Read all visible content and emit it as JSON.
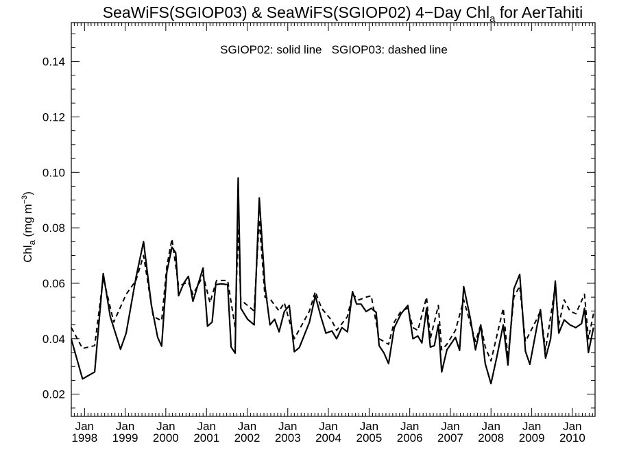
{
  "chart_data": {
    "type": "line",
    "title": "SeaWiFS(SGIOP03) & SeaWiFS(SGIOP02) 4−Day Chl",
    "title_subscript": "a",
    "title_suffix": " for AerTahiti",
    "annotation": "SGIOP02: solid line   SGIOP03: dashed line",
    "ylabel": "Chl",
    "ylabel_subscript": "a",
    "ylabel_units_prefix": " (mg m",
    "ylabel_units_superscript": "−3",
    "ylabel_units_suffix": ")",
    "xlabel": "",
    "xlim": [
      "1997-09-04",
      "2010-07-24"
    ],
    "ylim": [
      0.012,
      0.154
    ],
    "y_ticks": [
      0.02,
      0.04,
      0.06,
      0.08,
      0.1,
      0.12,
      0.14
    ],
    "y_tick_labels": [
      "0.02",
      "0.04",
      "0.06",
      "0.08",
      "0.10",
      "0.12",
      "0.14"
    ],
    "x_ticks": [
      {
        "month": "Jan",
        "year": "1998",
        "date": "1998-01-01"
      },
      {
        "month": "Jan",
        "year": "1999",
        "date": "1999-01-01"
      },
      {
        "month": "Jan",
        "year": "2000",
        "date": "2000-01-01"
      },
      {
        "month": "Jan",
        "year": "2001",
        "date": "2001-01-01"
      },
      {
        "month": "Jan",
        "year": "2002",
        "date": "2002-01-01"
      },
      {
        "month": "Jan",
        "year": "2003",
        "date": "2003-01-01"
      },
      {
        "month": "Jan",
        "year": "2004",
        "date": "2004-01-01"
      },
      {
        "month": "Jan",
        "year": "2005",
        "date": "2005-01-01"
      },
      {
        "month": "Jan",
        "year": "2006",
        "date": "2006-01-01"
      },
      {
        "month": "Jan",
        "year": "2007",
        "date": "2007-01-01"
      },
      {
        "month": "Jan",
        "year": "2008",
        "date": "2008-01-01"
      },
      {
        "month": "Jan",
        "year": "2009",
        "date": "2009-01-01"
      },
      {
        "month": "Jan",
        "year": "2010",
        "date": "2010-01-01"
      }
    ],
    "grid": false,
    "series": [
      {
        "line_style": "solid",
        "color": "#000000",
        "points": [
          [
            "1997-09-04",
            0.0398
          ],
          [
            "1997-12-14",
            0.0255
          ],
          [
            "1998-04-02",
            0.028
          ],
          [
            "1998-06-18",
            0.0635
          ],
          [
            "1998-08-20",
            0.048
          ],
          [
            "1998-11-20",
            0.0362
          ],
          [
            "1999-01-10",
            0.042
          ],
          [
            "1999-04-08",
            0.062
          ],
          [
            "1999-06-15",
            0.075
          ],
          [
            "1999-08-25",
            0.052
          ],
          [
            "1999-10-20",
            0.0405
          ],
          [
            "1999-11-25",
            0.0373
          ],
          [
            "2000-01-10",
            0.064
          ],
          [
            "2000-02-25",
            0.073
          ],
          [
            "2000-03-30",
            0.071
          ],
          [
            "2000-04-25",
            0.0555
          ],
          [
            "2000-06-10",
            0.06
          ],
          [
            "2000-07-22",
            0.0625
          ],
          [
            "2000-09-01",
            0.0535
          ],
          [
            "2000-10-20",
            0.06
          ],
          [
            "2000-12-01",
            0.0655
          ],
          [
            "2001-01-10",
            0.0445
          ],
          [
            "2001-02-20",
            0.046
          ],
          [
            "2001-03-25",
            0.0595
          ],
          [
            "2001-05-15",
            0.0598
          ],
          [
            "2001-07-10",
            0.0595
          ],
          [
            "2001-08-10",
            0.037
          ],
          [
            "2001-09-15",
            0.0348
          ],
          [
            "2001-10-12",
            0.098
          ],
          [
            "2001-11-05",
            0.051
          ],
          [
            "2002-01-05",
            0.047
          ],
          [
            "2002-03-05",
            0.045
          ],
          [
            "2002-04-20",
            0.0908
          ],
          [
            "2002-06-10",
            0.059
          ],
          [
            "2002-07-25",
            0.045
          ],
          [
            "2002-09-05",
            0.047
          ],
          [
            "2002-10-15",
            0.0425
          ],
          [
            "2002-12-01",
            0.0498
          ],
          [
            "2003-01-15",
            0.052
          ],
          [
            "2003-03-01",
            0.0353
          ],
          [
            "2003-04-15",
            0.0368
          ],
          [
            "2003-07-15",
            0.046
          ],
          [
            "2003-09-05",
            0.0555
          ],
          [
            "2003-10-25",
            0.048
          ],
          [
            "2003-12-10",
            0.042
          ],
          [
            "2004-02-01",
            0.0428
          ],
          [
            "2004-03-15",
            0.04
          ],
          [
            "2004-05-01",
            0.044
          ],
          [
            "2004-06-20",
            0.0425
          ],
          [
            "2004-08-05",
            0.057
          ],
          [
            "2004-09-10",
            0.0525
          ],
          [
            "2004-10-20",
            0.0525
          ],
          [
            "2004-12-05",
            0.0498
          ],
          [
            "2005-01-20",
            0.051
          ],
          [
            "2005-03-05",
            0.0495
          ],
          [
            "2005-04-01",
            0.0375
          ],
          [
            "2005-05-15",
            0.0348
          ],
          [
            "2005-06-25",
            0.031
          ],
          [
            "2005-08-15",
            0.044
          ],
          [
            "2005-10-15",
            0.049
          ],
          [
            "2005-12-15",
            0.052
          ],
          [
            "2006-01-30",
            0.04
          ],
          [
            "2006-03-15",
            0.041
          ],
          [
            "2006-04-20",
            0.0385
          ],
          [
            "2006-06-01",
            0.051
          ],
          [
            "2006-07-05",
            0.037
          ],
          [
            "2006-08-10",
            0.0375
          ],
          [
            "2006-09-15",
            0.045
          ],
          [
            "2006-10-15",
            0.028
          ],
          [
            "2006-12-01",
            0.036
          ],
          [
            "2007-02-15",
            0.0405
          ],
          [
            "2007-03-25",
            0.0358
          ],
          [
            "2007-05-01",
            0.0588
          ],
          [
            "2007-07-01",
            0.047
          ],
          [
            "2007-08-15",
            0.036
          ],
          [
            "2007-10-01",
            0.045
          ],
          [
            "2007-11-10",
            0.031
          ],
          [
            "2008-01-01",
            0.0238
          ],
          [
            "2008-02-20",
            0.033
          ],
          [
            "2008-04-20",
            0.045
          ],
          [
            "2008-06-01",
            0.0305
          ],
          [
            "2008-07-25",
            0.058
          ],
          [
            "2008-09-15",
            0.0632
          ],
          [
            "2008-11-05",
            0.0355
          ],
          [
            "2008-12-15",
            0.0308
          ],
          [
            "2009-02-15",
            0.044
          ],
          [
            "2009-03-20",
            0.0505
          ],
          [
            "2009-05-05",
            0.033
          ],
          [
            "2009-06-20",
            0.04
          ],
          [
            "2009-08-01",
            0.0608
          ],
          [
            "2009-09-01",
            0.042
          ],
          [
            "2009-10-20",
            0.0468
          ],
          [
            "2009-12-10",
            0.045
          ],
          [
            "2010-02-01",
            0.044
          ],
          [
            "2010-03-25",
            0.0455
          ],
          [
            "2010-04-20",
            0.051
          ],
          [
            "2010-05-25",
            0.035
          ],
          [
            "2010-07-10",
            0.044
          ]
        ]
      },
      {
        "line_style": "dashed",
        "color": "#000000",
        "points": [
          [
            "1997-09-04",
            0.044
          ],
          [
            "1997-12-14",
            0.0365
          ],
          [
            "1998-04-02",
            0.0375
          ],
          [
            "1998-06-18",
            0.062
          ],
          [
            "1998-09-20",
            0.046
          ],
          [
            "1999-01-10",
            0.056
          ],
          [
            "1999-04-08",
            0.061
          ],
          [
            "1999-06-15",
            0.07
          ],
          [
            "1999-09-10",
            0.048
          ],
          [
            "1999-11-25",
            0.0465
          ],
          [
            "2000-01-10",
            0.066
          ],
          [
            "2000-02-25",
            0.076
          ],
          [
            "2000-04-25",
            0.059
          ],
          [
            "2000-07-22",
            0.0605
          ],
          [
            "2000-09-01",
            0.056
          ],
          [
            "2000-10-20",
            0.0595
          ],
          [
            "2000-12-01",
            0.063
          ],
          [
            "2001-02-01",
            0.053
          ],
          [
            "2001-04-01",
            0.061
          ],
          [
            "2001-07-10",
            0.061
          ],
          [
            "2001-09-15",
            0.044
          ],
          [
            "2001-10-12",
            0.08
          ],
          [
            "2001-11-05",
            0.054
          ],
          [
            "2002-03-05",
            0.05
          ],
          [
            "2002-04-20",
            0.083
          ],
          [
            "2002-06-10",
            0.055
          ],
          [
            "2002-08-01",
            0.054
          ],
          [
            "2002-10-15",
            0.05
          ],
          [
            "2002-12-01",
            0.053
          ],
          [
            "2003-03-01",
            0.04
          ],
          [
            "2003-07-15",
            0.05
          ],
          [
            "2003-09-05",
            0.057
          ],
          [
            "2003-11-01",
            0.051
          ],
          [
            "2004-02-01",
            0.0465
          ],
          [
            "2004-03-15",
            0.043
          ],
          [
            "2004-06-20",
            0.048
          ],
          [
            "2004-08-05",
            0.056
          ],
          [
            "2004-10-01",
            0.054
          ],
          [
            "2004-12-05",
            0.055
          ],
          [
            "2005-01-20",
            0.0555
          ],
          [
            "2005-04-01",
            0.04
          ],
          [
            "2005-06-25",
            0.038
          ],
          [
            "2005-08-15",
            0.046
          ],
          [
            "2005-10-15",
            0.05
          ],
          [
            "2005-12-15",
            0.051
          ],
          [
            "2006-01-30",
            0.044
          ],
          [
            "2006-03-15",
            0.043
          ],
          [
            "2006-06-01",
            0.055
          ],
          [
            "2006-07-05",
            0.04
          ],
          [
            "2006-09-15",
            0.052
          ],
          [
            "2006-10-15",
            0.036
          ],
          [
            "2006-12-01",
            0.038
          ],
          [
            "2007-02-15",
            0.043
          ],
          [
            "2007-05-01",
            0.054
          ],
          [
            "2007-08-15",
            0.039
          ],
          [
            "2007-10-01",
            0.045
          ],
          [
            "2007-11-10",
            0.037
          ],
          [
            "2008-01-01",
            0.032
          ],
          [
            "2008-04-20",
            0.051
          ],
          [
            "2008-06-01",
            0.033
          ],
          [
            "2008-07-25",
            0.055
          ],
          [
            "2008-09-15",
            0.059
          ],
          [
            "2008-11-05",
            0.039
          ],
          [
            "2009-02-15",
            0.047
          ],
          [
            "2009-03-20",
            0.05
          ],
          [
            "2009-05-05",
            0.036
          ],
          [
            "2009-08-01",
            0.059
          ],
          [
            "2009-09-01",
            0.045
          ],
          [
            "2009-10-20",
            0.054
          ],
          [
            "2009-12-10",
            0.05
          ],
          [
            "2010-02-01",
            0.049
          ],
          [
            "2010-04-20",
            0.056
          ],
          [
            "2010-05-25",
            0.04
          ],
          [
            "2010-07-10",
            0.049
          ]
        ]
      }
    ]
  }
}
